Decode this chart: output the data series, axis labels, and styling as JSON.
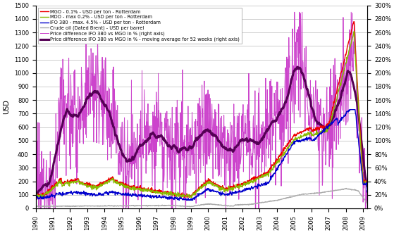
{
  "ylabel_left": "USD",
  "xlim": [
    1990.0,
    2009.25
  ],
  "ylim_left": [
    0,
    1500
  ],
  "ylim_right": [
    0,
    300
  ],
  "yticks_left": [
    0,
    100,
    200,
    300,
    400,
    500,
    600,
    700,
    800,
    900,
    1000,
    1100,
    1200,
    1300,
    1400,
    1500
  ],
  "yticks_right": [
    0,
    20,
    40,
    60,
    80,
    100,
    120,
    140,
    160,
    180,
    200,
    220,
    240,
    260,
    280,
    300
  ],
  "legend": [
    {
      "label": "MGO - 0.1% - USD per ton - Rotterdam",
      "color": "#ee0000",
      "lw": 1.0
    },
    {
      "label": "MDO - max 0.2% - USD per ton - Rotterdam",
      "color": "#88bb00",
      "lw": 1.0
    },
    {
      "label": "IFO 380 - max. 4.5% - USD per ton - Rotterdam",
      "color": "#0000cc",
      "lw": 1.0
    },
    {
      "label": "Crude oil (Dated Brent) - USD per barrel",
      "color": "#aaaaaa",
      "lw": 1.0
    },
    {
      "label": "Price difference IFO 380 vs MGO in % (right axis)",
      "color": "#cc44cc",
      "lw": 0.7
    },
    {
      "label": "Price difference IFO 380 vs MGO in % - moving average for 52 weeks (right axis)",
      "color": "#550055",
      "lw": 2.2
    }
  ],
  "grid_color": "#bbbbbb",
  "background_color": "#ffffff"
}
